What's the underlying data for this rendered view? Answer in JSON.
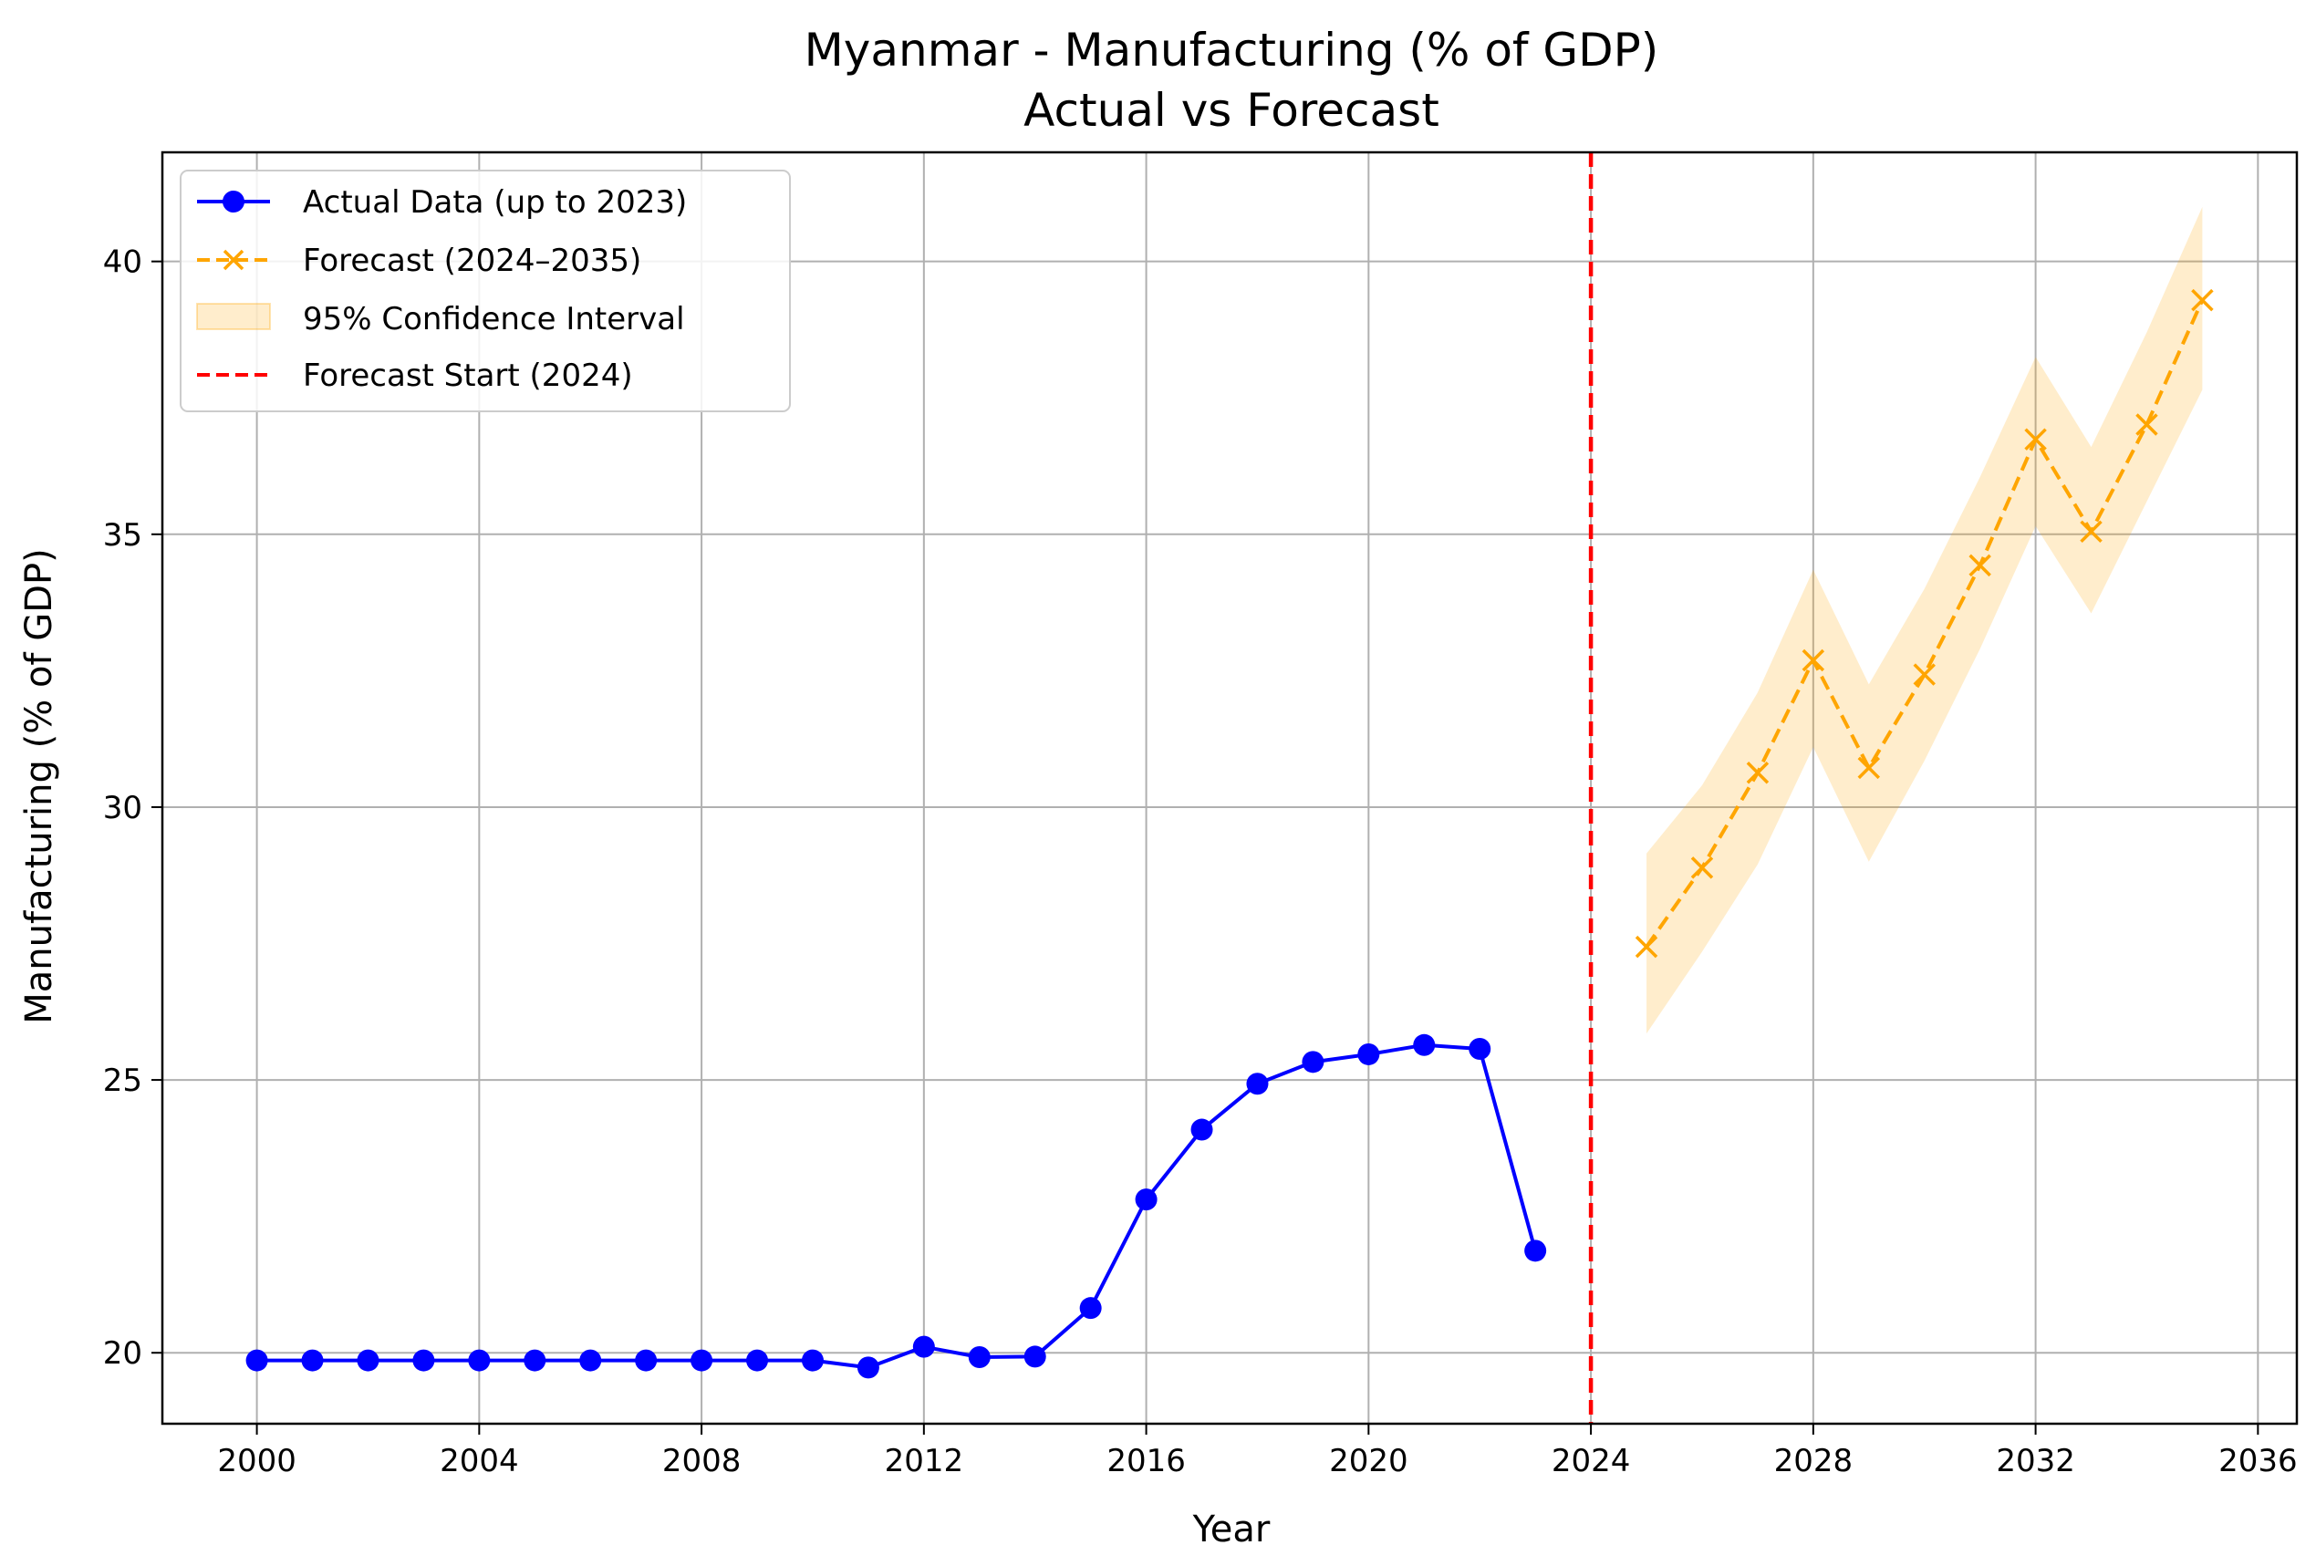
{
  "chart_data": {
    "type": "line",
    "title": "Myanmar - Manufacturing (% of GDP)",
    "subtitle": "Actual vs Forecast",
    "xlabel": "Year",
    "ylabel": "Manufacturing (% of GDP)",
    "xlim": [
      1998.3,
      2036.7
    ],
    "ylim": [
      18.7,
      42.0
    ],
    "xticks": [
      2000,
      2004,
      2008,
      2012,
      2016,
      2020,
      2024,
      2028,
      2032,
      2036
    ],
    "yticks": [
      20,
      25,
      30,
      35,
      40
    ],
    "grid": true,
    "legend_position": "top-left",
    "forecast_start": 2024,
    "series": [
      {
        "name": "Actual Data (up to 2023)",
        "color": "#0000ff",
        "style": "solid",
        "marker": "circle",
        "x": [
          2000,
          2001,
          2002,
          2003,
          2004,
          2005,
          2006,
          2007,
          2008,
          2009,
          2010,
          2011,
          2012,
          2013,
          2014,
          2015,
          2016,
          2017,
          2018,
          2019,
          2020,
          2021,
          2022,
          2023
        ],
        "y": [
          19.86,
          19.86,
          19.86,
          19.86,
          19.86,
          19.86,
          19.86,
          19.86,
          19.86,
          19.86,
          19.86,
          19.73,
          20.11,
          19.92,
          19.93,
          20.82,
          22.81,
          24.09,
          24.93,
          25.33,
          25.47,
          25.64,
          25.57,
          21.87
        ]
      },
      {
        "name": "Forecast (2024–2035)",
        "color": "#ffa500",
        "style": "dashed",
        "marker": "x",
        "x": [
          2025,
          2026,
          2027,
          2028,
          2029,
          2030,
          2031,
          2032,
          2033,
          2034,
          2035
        ],
        "y": [
          27.44,
          28.89,
          30.63,
          32.69,
          30.72,
          32.43,
          34.43,
          36.74,
          35.05,
          37.01,
          39.29
        ]
      }
    ],
    "confidence_interval": {
      "name": "95% Confidence Interval",
      "color": "#ffa500",
      "x": [
        2025,
        2026,
        2027,
        2028,
        2029,
        2030,
        2031,
        2032,
        2033,
        2034,
        2035
      ],
      "lower": [
        25.85,
        27.35,
        28.95,
        31.1,
        29.0,
        30.85,
        32.9,
        35.15,
        33.55,
        35.6,
        37.65
      ],
      "upper": [
        29.15,
        30.4,
        32.1,
        34.35,
        32.25,
        34.0,
        36.05,
        38.25,
        36.6,
        38.7,
        41.0
      ]
    },
    "vline": {
      "name": "Forecast Start (2024)",
      "x": 2024,
      "color": "#ff0000",
      "style": "dashed"
    }
  }
}
